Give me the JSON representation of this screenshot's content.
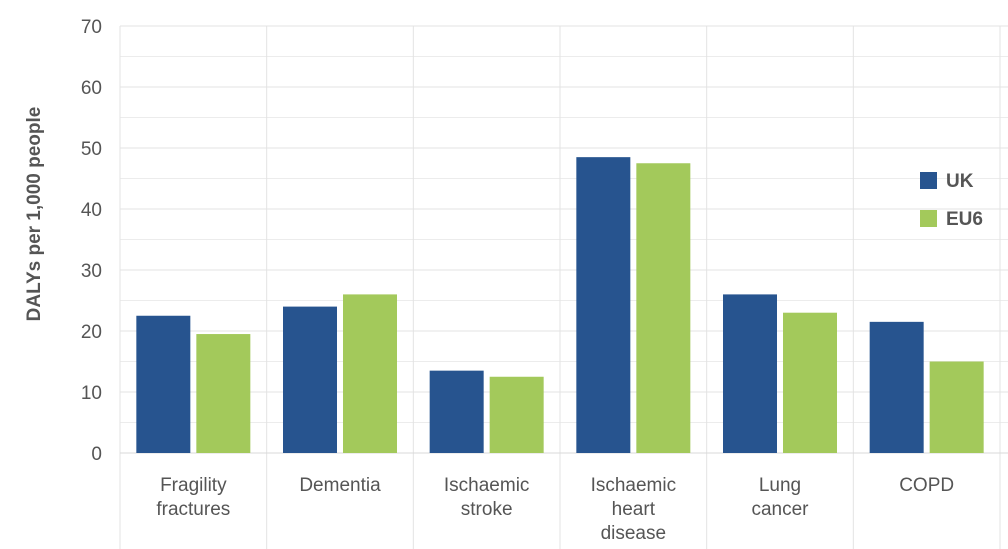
{
  "chart_data": {
    "type": "bar",
    "ylabel": "DALYs per 1,000 people",
    "xlabel": "",
    "ylim": [
      0,
      70
    ],
    "yticks": [
      0,
      10,
      20,
      30,
      40,
      50,
      60,
      70
    ],
    "grid": true,
    "legend_position": "right",
    "categories": [
      [
        "Fragility",
        "fractures"
      ],
      [
        "Dementia"
      ],
      [
        "Ischaemic",
        "stroke"
      ],
      [
        "Ischaemic",
        "heart",
        "disease"
      ],
      [
        "Lung",
        "cancer"
      ],
      [
        "COPD"
      ]
    ],
    "series": [
      {
        "name": "UK",
        "color": "#27548f",
        "values": [
          22.5,
          24,
          13.5,
          48.5,
          26,
          21.5
        ]
      },
      {
        "name": "EU6",
        "color": "#a3c95b",
        "values": [
          19.5,
          26,
          12.5,
          47.5,
          23,
          15
        ]
      }
    ]
  }
}
